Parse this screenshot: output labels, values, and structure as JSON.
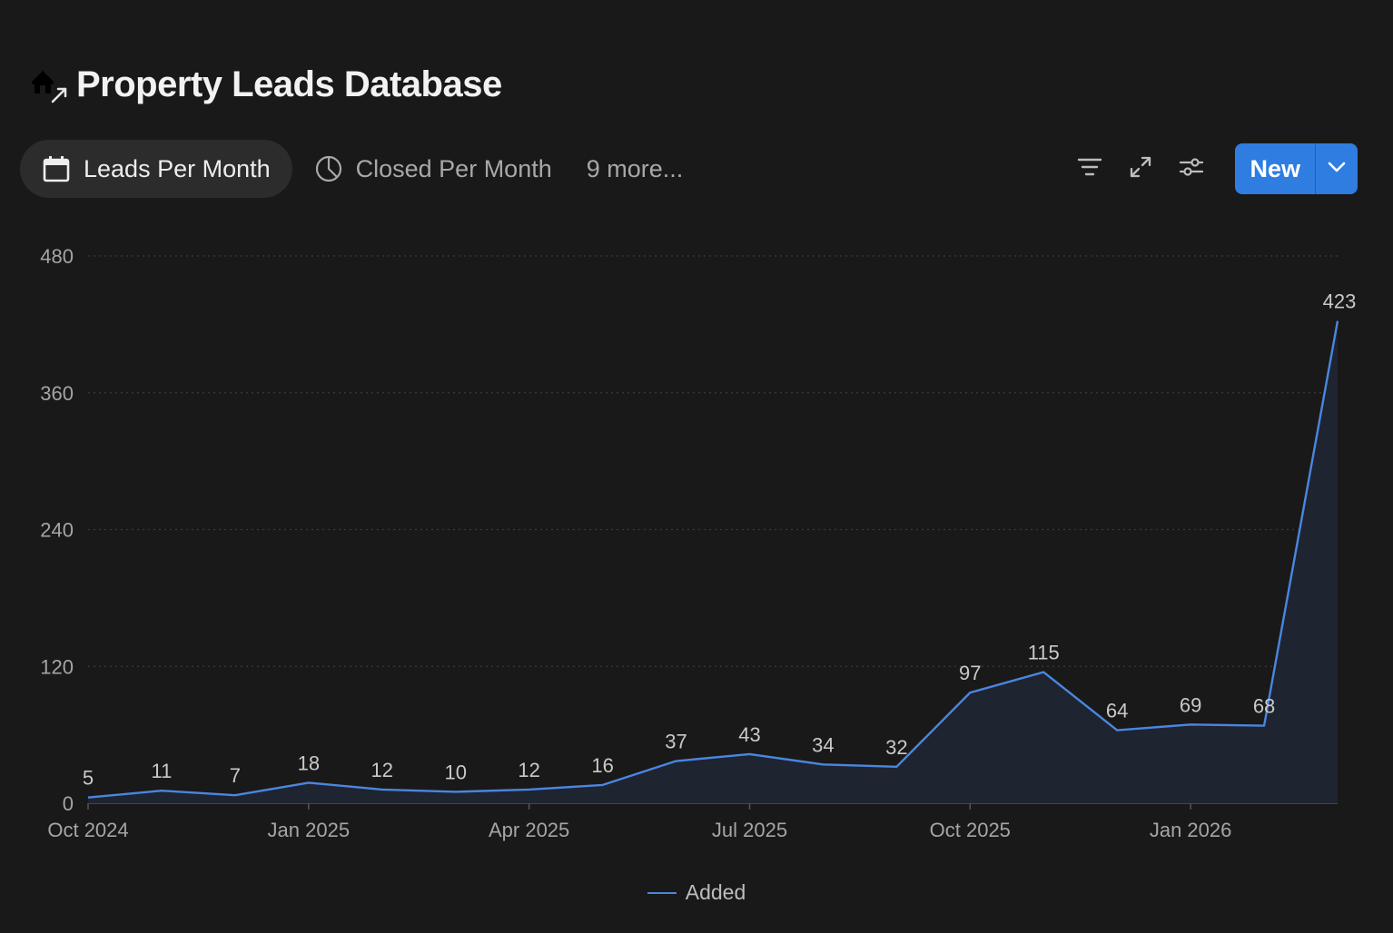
{
  "header": {
    "title": "Property Leads Database",
    "icon": "house-arrow-icon"
  },
  "tabs": [
    {
      "label": "Leads Per Month",
      "icon": "calendar-icon",
      "active": true
    },
    {
      "label": "Closed Per Month",
      "icon": "pie-chart-icon",
      "active": false
    }
  ],
  "more_views": "9 more...",
  "toolbar": {
    "filter_icon": "filter-icon",
    "expand_icon": "expand-icon",
    "settings_icon": "sliders-icon",
    "new_label": "New",
    "new_menu_icon": "chevron-down-icon"
  },
  "colors": {
    "background": "#191919",
    "accent": "#2f7de1",
    "line": "#4a86e0"
  },
  "chart_data": {
    "type": "area",
    "x": [
      "Oct 2024",
      "Nov 2024",
      "Dec 2024",
      "Jan 2025",
      "Feb 2025",
      "Mar 2025",
      "Apr 2025",
      "May 2025",
      "Jun 2025",
      "Jul 2025",
      "Aug 2025",
      "Sep 2025",
      "Oct 2025",
      "Nov 2025",
      "Dec 2025",
      "Jan 2026",
      "Feb 2026",
      "Mar 2026"
    ],
    "series": [
      {
        "name": "Added",
        "values": [
          5,
          11,
          7,
          18,
          12,
          10,
          12,
          16,
          37,
          43,
          34,
          32,
          97,
          115,
          64,
          69,
          68,
          423
        ]
      }
    ],
    "x_tick_labels": [
      "Oct 2024",
      "Jan 2025",
      "Apr 2025",
      "Jul 2025",
      "Oct 2025",
      "Jan 2026"
    ],
    "y_ticks": [
      0,
      120,
      240,
      360,
      480
    ],
    "ylim": [
      0,
      480
    ],
    "grid": true,
    "legend": "bottom-center"
  }
}
